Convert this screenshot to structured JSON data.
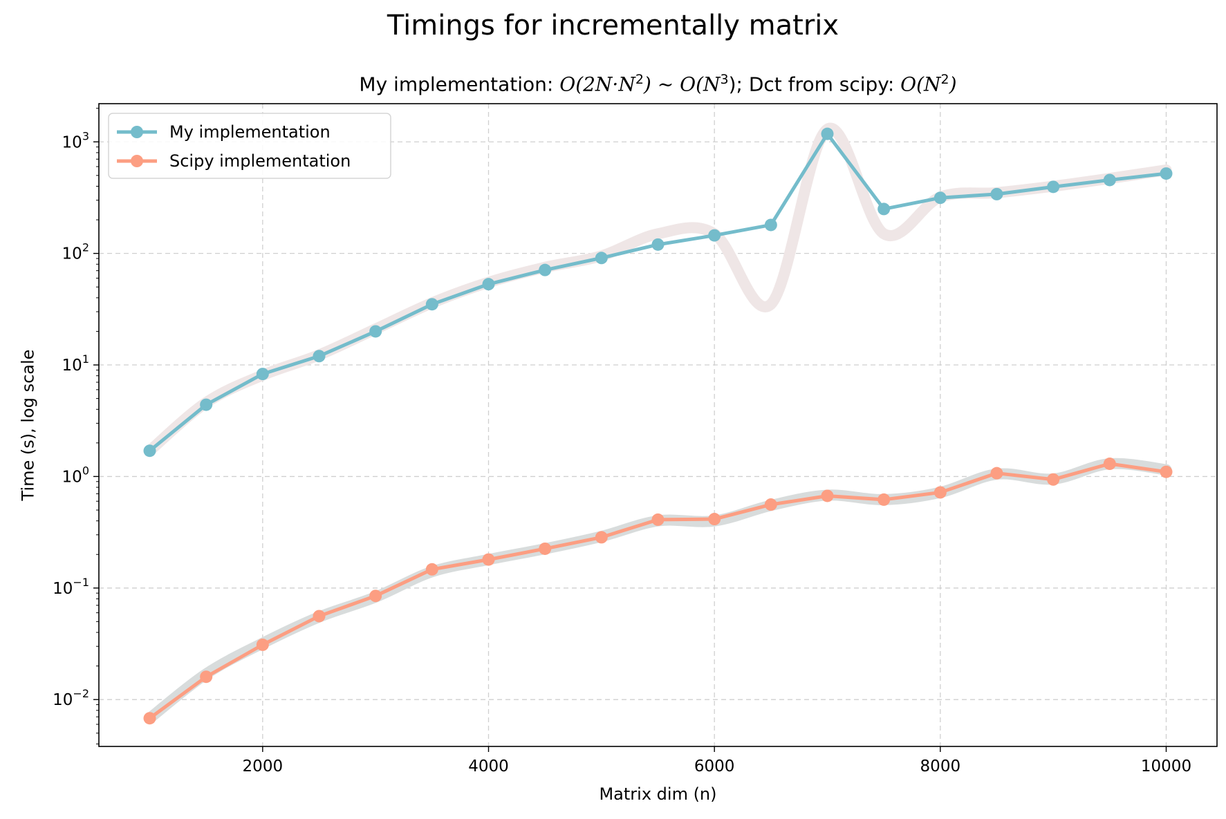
{
  "chart_data": {
    "type": "line",
    "title": "Timings for incrementally matrix",
    "subtitle": {
      "part1": "My implementation: ",
      "expr1": "O(2N·N",
      "sup1": "2",
      "mid1": ") ~ O(N",
      "sup2": "3",
      "mid2": "); Dct from scipy: ",
      "expr2": "O(N",
      "sup3": "2",
      "end": ")"
    },
    "xlabel": "Matrix dim (n)",
    "ylabel": "Time (s), log scale",
    "yscale": "log",
    "xlim": [
      550,
      10450
    ],
    "ylim": [
      0.0038,
      2200
    ],
    "grid": true,
    "legend_position": "upper-left",
    "x_ticks": [
      2000,
      4000,
      6000,
      8000,
      10000
    ],
    "y_ticks": [
      {
        "value": 0.01,
        "base": "10",
        "exp": "−2"
      },
      {
        "value": 0.1,
        "base": "10",
        "exp": "−1"
      },
      {
        "value": 1,
        "base": "10",
        "exp": "0"
      },
      {
        "value": 10,
        "base": "10",
        "exp": "1"
      },
      {
        "value": 100,
        "base": "10",
        "exp": "2"
      },
      {
        "value": 1000,
        "base": "10",
        "exp": "3"
      }
    ],
    "x": [
      1000,
      1500,
      2000,
      2500,
      3000,
      3500,
      4000,
      4500,
      5000,
      5500,
      6000,
      6500,
      7000,
      7500,
      8000,
      8500,
      9000,
      9500,
      10000
    ],
    "series": [
      {
        "name": "My implementation",
        "color": "#74bccb",
        "values": [
          1.7,
          4.4,
          8.3,
          12,
          20,
          35,
          53,
          71,
          91,
          120,
          145,
          180,
          1180,
          250,
          315,
          340,
          395,
          455,
          520
        ],
        "smooth_color": "#efe6e6",
        "smooth_values": [
          1.7,
          4.6,
          8.1,
          12.3,
          21,
          36,
          55,
          75,
          95,
          150,
          150,
          35,
          1300,
          150,
          320,
          350,
          400,
          470,
          560
        ]
      },
      {
        "name": "Scipy implementation",
        "color": "#fc9e82",
        "values": [
          0.0068,
          0.016,
          0.031,
          0.056,
          0.085,
          0.147,
          0.18,
          0.225,
          0.285,
          0.41,
          0.415,
          0.56,
          0.67,
          0.62,
          0.72,
          1.07,
          0.94,
          1.3,
          1.1
        ],
        "smooth_color": "#d8dcdc",
        "smooth_values": [
          0.0068,
          0.017,
          0.032,
          0.055,
          0.083,
          0.14,
          0.18,
          0.225,
          0.29,
          0.4,
          0.4,
          0.55,
          0.68,
          0.62,
          0.72,
          1.05,
          0.95,
          1.3,
          1.15
        ]
      }
    ]
  }
}
